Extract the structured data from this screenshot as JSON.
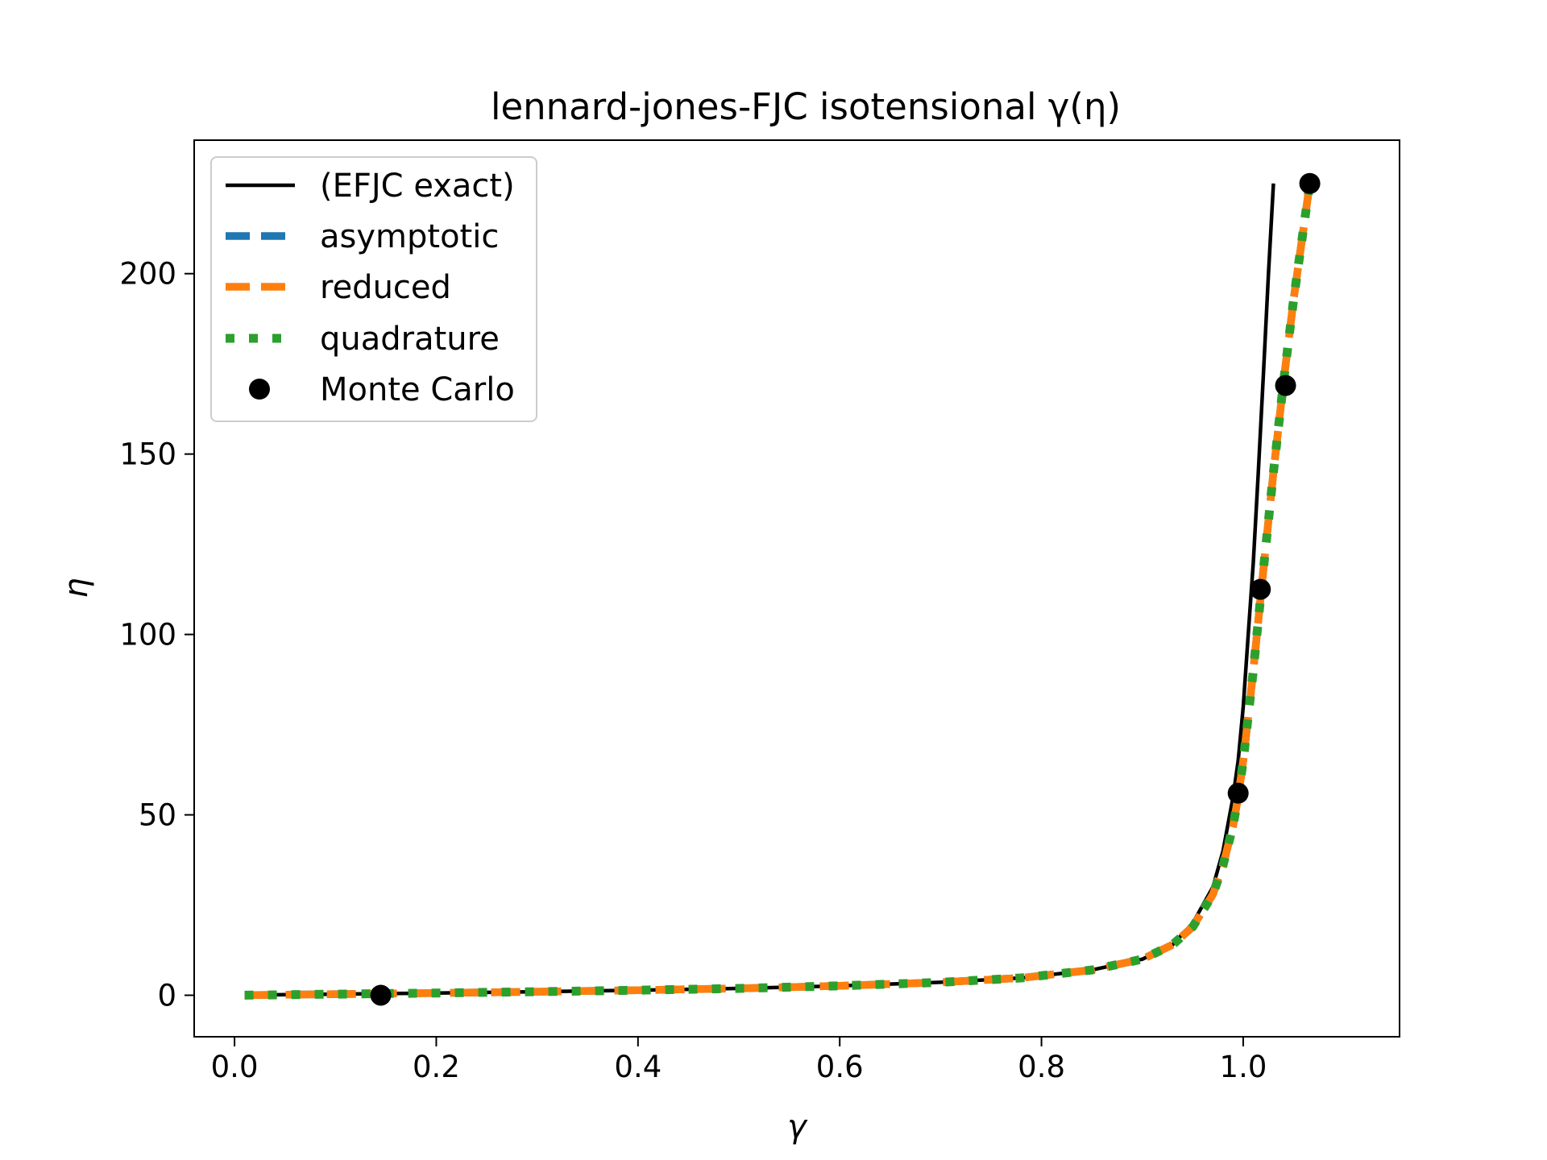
{
  "chart_data": {
    "type": "line",
    "title": "lennard-jones-FJC isotensional γ(η)",
    "xlabel": "γ",
    "ylabel": "η",
    "xlim": [
      -0.04,
      1.155
    ],
    "ylim": [
      -11.5,
      237
    ],
    "xticks": [
      0.0,
      0.2,
      0.4,
      0.6,
      0.8,
      1.0
    ],
    "xtick_labels": [
      "0.0",
      "0.2",
      "0.4",
      "0.6",
      "0.8",
      "1.0"
    ],
    "yticks": [
      0,
      50,
      100,
      150,
      200
    ],
    "ytick_labels": [
      "0",
      "50",
      "100",
      "150",
      "200"
    ],
    "grid": false,
    "legend_position": "upper-left",
    "series": [
      {
        "name": "(EFJC exact)",
        "style": "solid",
        "color": "#000000",
        "x": [
          0.01,
          0.05,
          0.1,
          0.15,
          0.2,
          0.3,
          0.4,
          0.5,
          0.6,
          0.7,
          0.78,
          0.85,
          0.9,
          0.93,
          0.95,
          0.97,
          0.98,
          0.99,
          0.995,
          1.0,
          1.005,
          1.01,
          1.015,
          1.02,
          1.025,
          1.03
        ],
        "y": [
          0.03,
          0.15,
          0.3,
          0.46,
          0.62,
          0.98,
          1.4,
          1.9,
          2.6,
          3.6,
          4.8,
          7.0,
          10.0,
          14.0,
          20.0,
          30.0,
          40.0,
          55.0,
          65.0,
          80.0,
          100.0,
          120.0,
          145.0,
          172.0,
          200.0,
          225.0
        ]
      },
      {
        "name": "asymptotic",
        "style": "dashed",
        "color": "#1f77b4",
        "x": [
          0.01,
          0.1,
          0.2,
          0.3,
          0.4,
          0.5,
          0.6,
          0.7,
          0.78,
          0.85,
          0.9,
          0.93,
          0.95,
          0.97,
          0.98,
          0.99,
          0.995,
          1.0,
          1.01,
          1.02,
          1.03,
          1.04,
          1.05,
          1.06,
          1.065
        ],
        "y": [
          0.03,
          0.3,
          0.62,
          0.98,
          1.4,
          1.9,
          2.6,
          3.6,
          4.8,
          7.0,
          10.0,
          14.0,
          19.0,
          28.0,
          36.0,
          47.0,
          55.0,
          65.0,
          90.0,
          118.0,
          145.0,
          170.0,
          193.0,
          213.0,
          223.0
        ]
      },
      {
        "name": "reduced",
        "style": "dashed",
        "color": "#ff7f0e",
        "x": [
          0.01,
          0.1,
          0.2,
          0.3,
          0.4,
          0.5,
          0.6,
          0.7,
          0.78,
          0.85,
          0.9,
          0.93,
          0.95,
          0.97,
          0.98,
          0.99,
          0.995,
          1.0,
          1.01,
          1.02,
          1.03,
          1.04,
          1.05,
          1.06,
          1.065
        ],
        "y": [
          0.03,
          0.3,
          0.62,
          0.98,
          1.4,
          1.9,
          2.6,
          3.6,
          4.8,
          7.0,
          10.0,
          14.0,
          19.0,
          28.0,
          36.0,
          47.0,
          55.0,
          65.0,
          90.0,
          118.0,
          145.0,
          170.0,
          193.0,
          213.0,
          223.0
        ]
      },
      {
        "name": "quadrature",
        "style": "dotted",
        "color": "#2ca02c",
        "x": [
          0.01,
          0.1,
          0.2,
          0.3,
          0.4,
          0.5,
          0.6,
          0.7,
          0.78,
          0.85,
          0.9,
          0.93,
          0.95,
          0.97,
          0.98,
          0.99,
          0.995,
          1.0,
          1.01,
          1.02,
          1.03,
          1.04,
          1.05,
          1.06,
          1.065
        ],
        "y": [
          0.03,
          0.3,
          0.62,
          0.98,
          1.4,
          1.9,
          2.6,
          3.6,
          4.8,
          7.0,
          10.0,
          14.0,
          19.0,
          28.0,
          36.0,
          47.0,
          55.0,
          65.0,
          90.0,
          118.0,
          145.0,
          170.0,
          193.0,
          213.0,
          223.0
        ]
      },
      {
        "name": "Monte Carlo",
        "style": "markers",
        "color": "#000000",
        "x": [
          0.145,
          0.995,
          1.017,
          1.042,
          1.066
        ],
        "y": [
          0.0,
          56.0,
          112.5,
          169.0,
          225.0
        ]
      }
    ]
  }
}
